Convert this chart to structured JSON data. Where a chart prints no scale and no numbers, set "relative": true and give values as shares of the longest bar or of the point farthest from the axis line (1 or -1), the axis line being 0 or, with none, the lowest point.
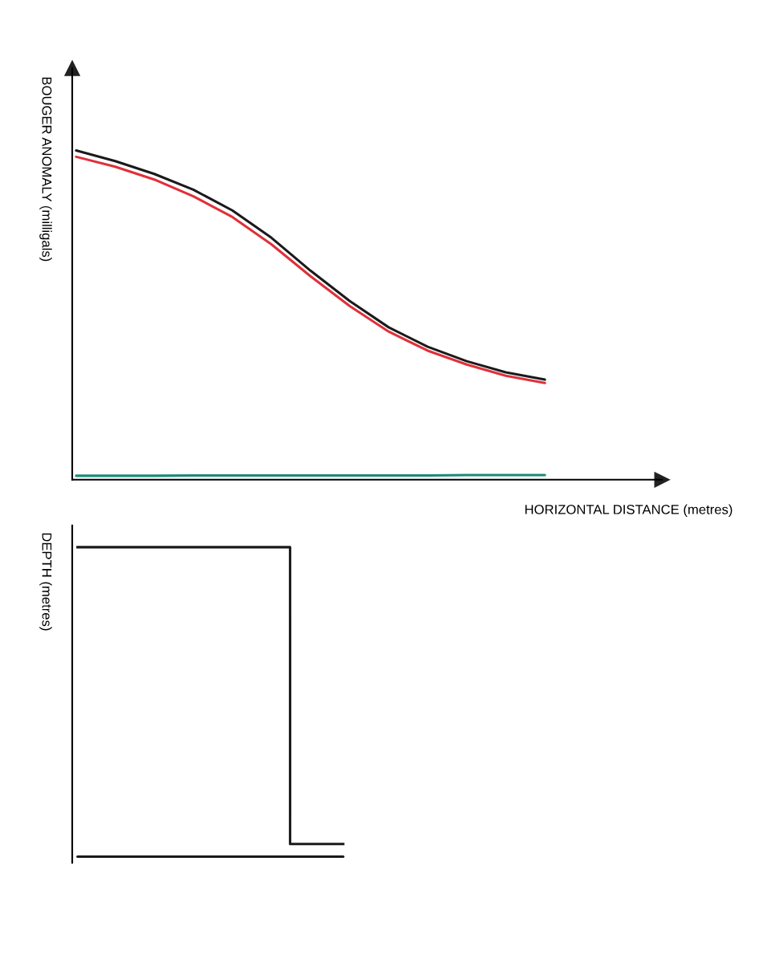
{
  "chart_data": [
    {
      "type": "line",
      "relative": true,
      "ylabel": "BOUGER ANOMALY (milligals)",
      "xlabel": "HORIZONTAL DISTANCE (metres)",
      "categories": [
        null,
        null,
        null,
        null,
        null,
        null,
        null,
        null,
        null,
        null,
        null,
        null,
        null,
        null,
        null,
        null
      ],
      "series": [
        {
          "color": "#1a1a1a",
          "values": [
            1.0,
            0.968,
            0.929,
            0.881,
            0.818,
            0.735,
            0.635,
            0.543,
            0.463,
            0.404,
            0.36,
            0.326,
            0.304,
            null,
            null,
            null
          ]
        },
        {
          "color": "#e0303a",
          "values": [
            0.981,
            0.951,
            0.912,
            0.861,
            0.798,
            0.715,
            0.618,
            0.528,
            0.45,
            0.392,
            0.35,
            0.316,
            0.294,
            null,
            null,
            null
          ]
        },
        {
          "color": "#1a8a78",
          "values": [
            0.012,
            0.012,
            0.012,
            0.013,
            0.013,
            0.013,
            0.013,
            0.013,
            0.013,
            0.013,
            0.014,
            0.014,
            0.014,
            null,
            null,
            null
          ]
        }
      ]
    },
    {
      "type": "step",
      "relative": true,
      "ylabel": "DEPTH (metres)",
      "categories": [
        null,
        null,
        null,
        null,
        null,
        null,
        null,
        null,
        null,
        null,
        null,
        null
      ],
      "series": [
        {
          "color": "#1a1a1a",
          "values": [
            1.0,
            1.0,
            1.0,
            1.0,
            0.041,
            0.041,
            null,
            null,
            null,
            null,
            null,
            null
          ]
        },
        {
          "type": "line",
          "color": "#1a1a1a",
          "values": [
            0,
            0,
            0,
            0,
            0,
            0,
            null,
            null,
            null,
            null,
            null,
            null
          ]
        }
      ]
    }
  ]
}
